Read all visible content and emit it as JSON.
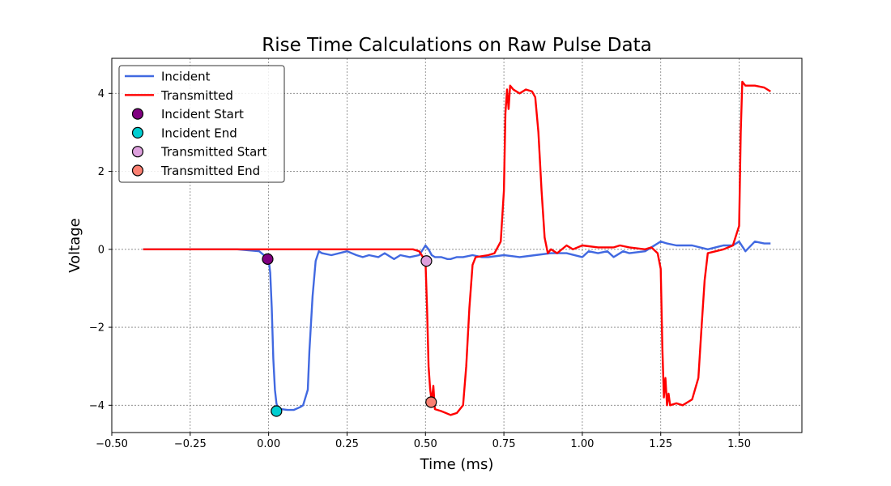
{
  "chart_data": {
    "type": "line",
    "title": "Rise Time Calculations on Raw Pulse Data",
    "xlabel": "Time (ms)",
    "ylabel": "Voltage",
    "xlim": [
      -0.5,
      1.7
    ],
    "ylim": [
      -4.7,
      4.9
    ],
    "xticks": [
      -0.5,
      -0.25,
      0.0,
      0.25,
      0.5,
      0.75,
      1.0,
      1.25,
      1.5
    ],
    "xtick_labels": [
      "−0.50",
      "−0.25",
      "0.00",
      "0.25",
      "0.50",
      "0.75",
      "1.00",
      "1.25",
      "1.50"
    ],
    "yticks": [
      -4,
      -2,
      0,
      2,
      4
    ],
    "ytick_labels": [
      "−4",
      "−2",
      "0",
      "2",
      "4"
    ],
    "grid": true,
    "legend_position": "top-left",
    "series": [
      {
        "name": "Incident",
        "color": "#4169e1",
        "x": [
          -0.4,
          -0.3,
          -0.2,
          -0.1,
          -0.03,
          0.0,
          0.005,
          0.01,
          0.015,
          0.02,
          0.025,
          0.03,
          0.04,
          0.06,
          0.08,
          0.1,
          0.11,
          0.125,
          0.13,
          0.14,
          0.15,
          0.16,
          0.17,
          0.2,
          0.25,
          0.28,
          0.3,
          0.32,
          0.35,
          0.37,
          0.4,
          0.42,
          0.45,
          0.48,
          0.5,
          0.51,
          0.52,
          0.53,
          0.55,
          0.57,
          0.58,
          0.6,
          0.62,
          0.65,
          0.68,
          0.7,
          0.75,
          0.8,
          0.85,
          0.9,
          0.95,
          1.0,
          1.02,
          1.05,
          1.08,
          1.1,
          1.13,
          1.15,
          1.2,
          1.25,
          1.27,
          1.3,
          1.35,
          1.4,
          1.45,
          1.48,
          1.5,
          1.52,
          1.55,
          1.58,
          1.6
        ],
        "y": [
          0.0,
          0.0,
          0.0,
          0.0,
          -0.05,
          -0.25,
          -0.6,
          -1.5,
          -2.8,
          -3.6,
          -3.95,
          -4.1,
          -4.1,
          -4.12,
          -4.12,
          -4.05,
          -4.0,
          -3.6,
          -2.6,
          -1.2,
          -0.3,
          -0.05,
          -0.1,
          -0.15,
          -0.05,
          -0.15,
          -0.2,
          -0.15,
          -0.2,
          -0.1,
          -0.25,
          -0.15,
          -0.2,
          -0.15,
          0.1,
          0.0,
          -0.15,
          -0.2,
          -0.2,
          -0.25,
          -0.25,
          -0.2,
          -0.2,
          -0.15,
          -0.2,
          -0.2,
          -0.15,
          -0.2,
          -0.15,
          -0.1,
          -0.1,
          -0.2,
          -0.05,
          -0.1,
          -0.05,
          -0.2,
          -0.05,
          -0.1,
          -0.05,
          0.2,
          0.15,
          0.1,
          0.1,
          0.0,
          0.1,
          0.1,
          0.2,
          -0.05,
          0.2,
          0.15,
          0.15
        ]
      },
      {
        "name": "Transmitted",
        "color": "#ff0000",
        "x": [
          -0.4,
          -0.2,
          0.0,
          0.2,
          0.4,
          0.46,
          0.48,
          0.5,
          0.505,
          0.51,
          0.515,
          0.52,
          0.525,
          0.53,
          0.55,
          0.58,
          0.6,
          0.62,
          0.63,
          0.64,
          0.65,
          0.66,
          0.7,
          0.72,
          0.74,
          0.75,
          0.755,
          0.76,
          0.765,
          0.77,
          0.78,
          0.8,
          0.82,
          0.84,
          0.85,
          0.86,
          0.87,
          0.88,
          0.89,
          0.9,
          0.92,
          0.95,
          0.97,
          1.0,
          1.05,
          1.1,
          1.12,
          1.15,
          1.2,
          1.22,
          1.24,
          1.25,
          1.255,
          1.26,
          1.265,
          1.27,
          1.275,
          1.28,
          1.3,
          1.32,
          1.35,
          1.37,
          1.38,
          1.39,
          1.4,
          1.45,
          1.48,
          1.5,
          1.505,
          1.51,
          1.52,
          1.55,
          1.58,
          1.6
        ],
        "y": [
          0.0,
          0.0,
          0.0,
          0.0,
          0.0,
          0.0,
          -0.05,
          -0.3,
          -1.5,
          -3.0,
          -3.6,
          -3.9,
          -3.5,
          -4.1,
          -4.15,
          -4.25,
          -4.2,
          -4.0,
          -3.0,
          -1.5,
          -0.4,
          -0.2,
          -0.15,
          -0.1,
          0.2,
          1.5,
          3.5,
          4.1,
          3.6,
          4.2,
          4.1,
          4.0,
          4.1,
          4.05,
          3.9,
          3.0,
          1.5,
          0.3,
          -0.1,
          0.0,
          -0.1,
          0.1,
          0.0,
          0.1,
          0.05,
          0.05,
          0.1,
          0.05,
          0.0,
          0.05,
          -0.1,
          -0.5,
          -2.5,
          -3.8,
          -3.3,
          -4.0,
          -3.7,
          -4.0,
          -3.95,
          -4.0,
          -3.85,
          -3.3,
          -2.0,
          -0.8,
          -0.1,
          0.0,
          0.1,
          0.6,
          3.0,
          4.3,
          4.2,
          4.2,
          4.15,
          4.05
        ]
      }
    ],
    "markers": [
      {
        "name": "Incident Start",
        "x": -0.003,
        "y": -0.25,
        "color": "#800080"
      },
      {
        "name": "Incident End",
        "x": 0.025,
        "y": -4.15,
        "color": "#00ced1"
      },
      {
        "name": "Transmitted Start",
        "x": 0.503,
        "y": -0.3,
        "color": "#dda0dd"
      },
      {
        "name": "Transmitted End",
        "x": 0.518,
        "y": -3.92,
        "color": "#fa8072"
      }
    ]
  }
}
